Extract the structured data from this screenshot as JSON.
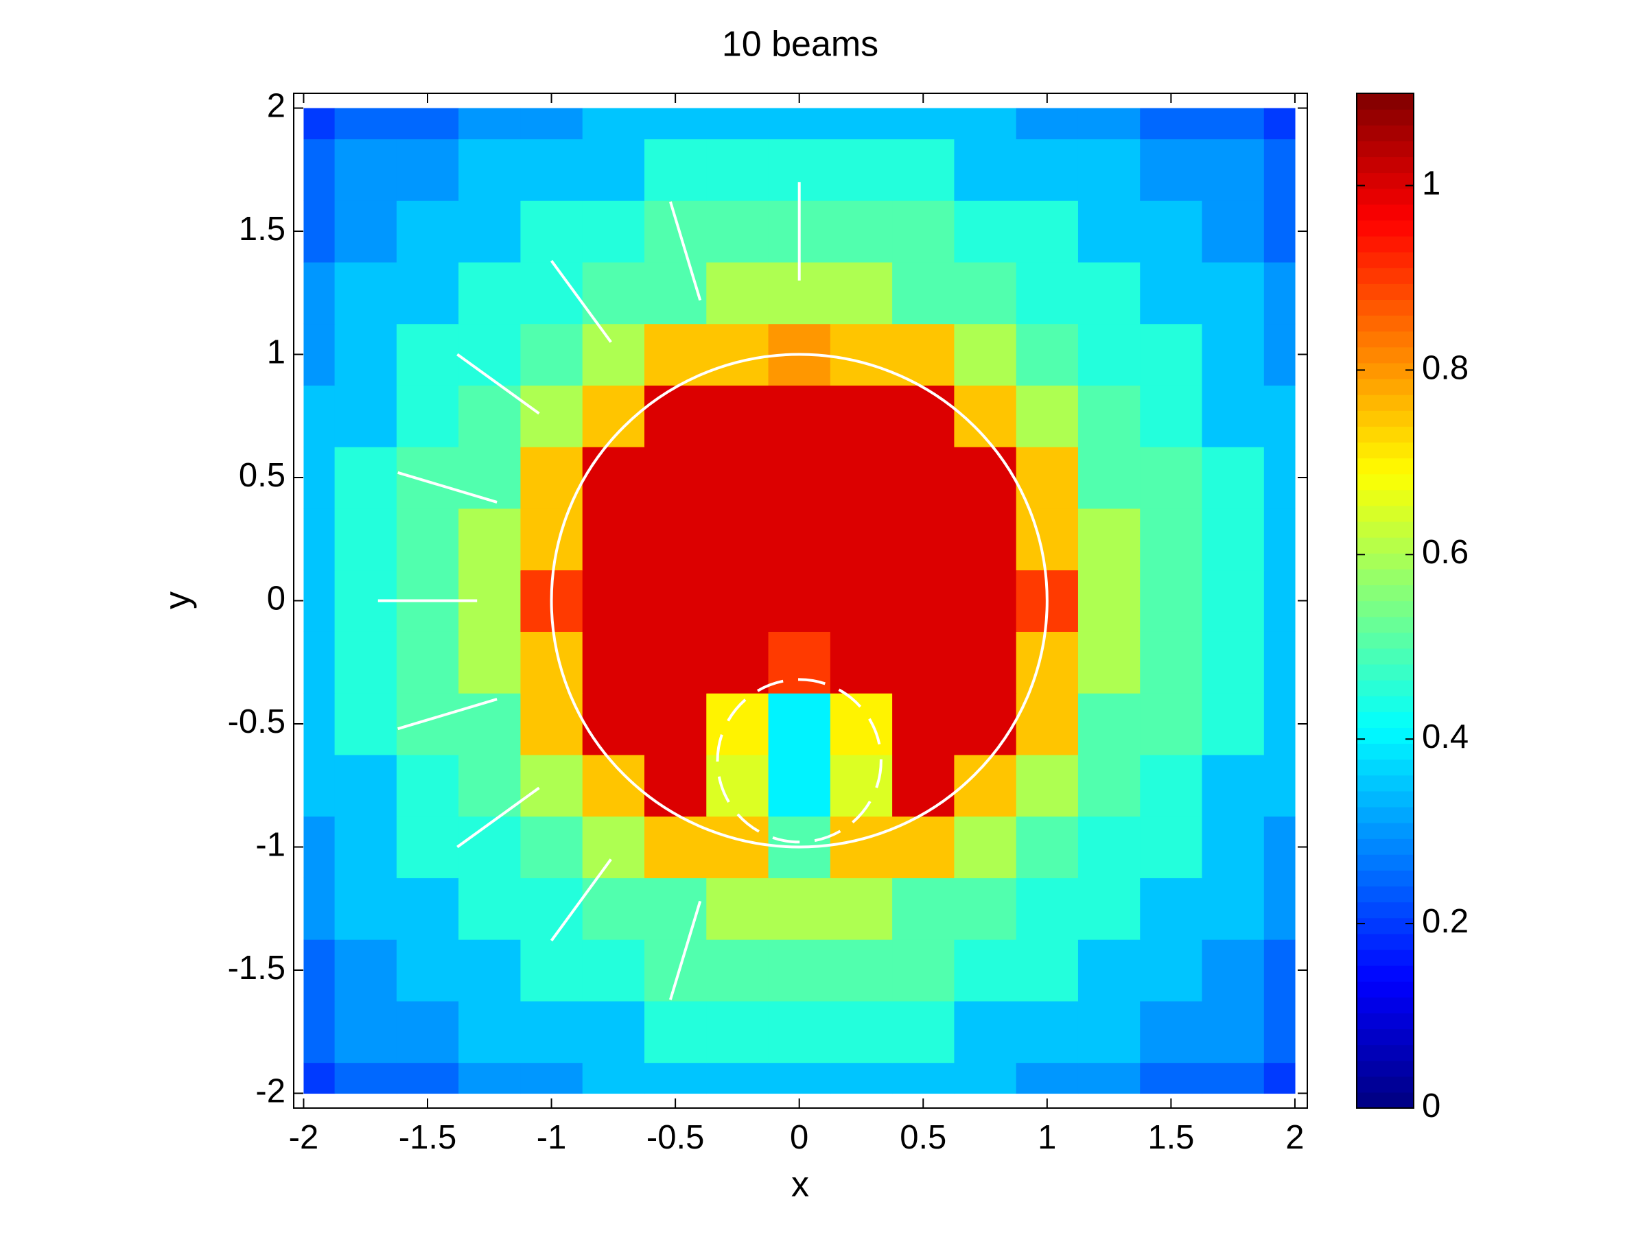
{
  "chart_data": {
    "type": "heatmap",
    "title": "10 beams",
    "x_label": "x",
    "y_label": "y",
    "colormap": "jet",
    "x": [
      -2,
      -1.75,
      -1.5,
      -1.25,
      -1,
      -0.75,
      -0.5,
      -0.25,
      0,
      0.25,
      0.5,
      0.75,
      1,
      1.25,
      1.5,
      1.75,
      2
    ],
    "y": [
      -2,
      -1.75,
      -1.5,
      -1.25,
      -1,
      -0.75,
      -0.5,
      -0.25,
      0,
      0.25,
      0.5,
      0.75,
      1,
      1.25,
      1.5,
      1.75,
      2
    ],
    "z": [
      [
        0.2,
        0.25,
        0.25,
        0.3,
        0.3,
        0.35,
        0.35,
        0.35,
        0.35,
        0.35,
        0.35,
        0.35,
        0.3,
        0.3,
        0.25,
        0.25,
        0.2
      ],
      [
        0.25,
        0.3,
        0.3,
        0.35,
        0.35,
        0.35,
        0.45,
        0.45,
        0.45,
        0.45,
        0.45,
        0.35,
        0.35,
        0.35,
        0.3,
        0.3,
        0.25
      ],
      [
        0.25,
        0.3,
        0.35,
        0.35,
        0.45,
        0.45,
        0.5,
        0.5,
        0.5,
        0.5,
        0.5,
        0.45,
        0.45,
        0.35,
        0.35,
        0.3,
        0.25
      ],
      [
        0.3,
        0.35,
        0.35,
        0.45,
        0.45,
        0.5,
        0.5,
        0.6,
        0.6,
        0.6,
        0.5,
        0.5,
        0.45,
        0.45,
        0.35,
        0.35,
        0.3
      ],
      [
        0.3,
        0.35,
        0.45,
        0.45,
        0.5,
        0.6,
        0.75,
        0.75,
        0.5,
        0.75,
        0.75,
        0.6,
        0.5,
        0.45,
        0.45,
        0.35,
        0.3
      ],
      [
        0.35,
        0.35,
        0.45,
        0.5,
        0.6,
        0.75,
        1,
        0.65,
        0.4,
        0.65,
        1,
        0.75,
        0.6,
        0.5,
        0.45,
        0.35,
        0.35
      ],
      [
        0.35,
        0.45,
        0.5,
        0.5,
        0.75,
        1,
        1,
        0.7,
        0.4,
        0.7,
        1,
        1,
        0.75,
        0.5,
        0.5,
        0.45,
        0.35
      ],
      [
        0.35,
        0.45,
        0.5,
        0.6,
        0.75,
        1,
        1,
        1,
        0.9,
        1,
        1,
        1,
        0.75,
        0.6,
        0.5,
        0.45,
        0.35
      ],
      [
        0.35,
        0.45,
        0.5,
        0.6,
        0.9,
        1,
        1,
        1,
        1,
        1,
        1,
        1,
        0.9,
        0.6,
        0.5,
        0.45,
        0.35
      ],
      [
        0.35,
        0.45,
        0.5,
        0.6,
        0.75,
        1,
        1,
        1,
        1,
        1,
        1,
        1,
        0.75,
        0.6,
        0.5,
        0.45,
        0.35
      ],
      [
        0.35,
        0.45,
        0.5,
        0.5,
        0.75,
        1,
        1,
        1,
        1,
        1,
        1,
        1,
        0.75,
        0.5,
        0.5,
        0.45,
        0.35
      ],
      [
        0.35,
        0.35,
        0.45,
        0.5,
        0.6,
        0.75,
        1,
        1,
        1,
        1,
        1,
        0.75,
        0.6,
        0.5,
        0.45,
        0.35,
        0.35
      ],
      [
        0.3,
        0.35,
        0.45,
        0.45,
        0.5,
        0.6,
        0.75,
        0.75,
        0.8,
        0.75,
        0.75,
        0.6,
        0.5,
        0.45,
        0.45,
        0.35,
        0.3
      ],
      [
        0.3,
        0.35,
        0.35,
        0.45,
        0.45,
        0.5,
        0.5,
        0.6,
        0.6,
        0.6,
        0.5,
        0.5,
        0.45,
        0.45,
        0.35,
        0.35,
        0.3
      ],
      [
        0.25,
        0.3,
        0.35,
        0.35,
        0.45,
        0.45,
        0.5,
        0.5,
        0.5,
        0.5,
        0.5,
        0.45,
        0.45,
        0.35,
        0.35,
        0.3,
        0.25
      ],
      [
        0.25,
        0.3,
        0.3,
        0.35,
        0.35,
        0.35,
        0.45,
        0.45,
        0.45,
        0.45,
        0.45,
        0.35,
        0.35,
        0.35,
        0.3,
        0.3,
        0.25
      ],
      [
        0.2,
        0.25,
        0.25,
        0.3,
        0.3,
        0.35,
        0.35,
        0.35,
        0.35,
        0.35,
        0.35,
        0.35,
        0.3,
        0.3,
        0.25,
        0.25,
        0.2
      ]
    ],
    "circles": [
      {
        "cx": 0,
        "cy": 0,
        "r": 1,
        "dashed": false
      },
      {
        "cx": 0,
        "cy": -0.65,
        "r": 0.33,
        "dashed": true
      }
    ],
    "segments": [
      {
        "x": [
          0,
          0
        ],
        "y": [
          1.7,
          1.3
        ]
      },
      {
        "x": [
          -0.52,
          -0.4
        ],
        "y": [
          1.62,
          1.22
        ]
      },
      {
        "x": [
          -1,
          -0.76
        ],
        "y": [
          1.38,
          1.05
        ]
      },
      {
        "x": [
          -1.38,
          -1.05
        ],
        "y": [
          1,
          0.76
        ]
      },
      {
        "x": [
          -1.62,
          -1.22
        ],
        "y": [
          0.52,
          0.4
        ]
      },
      {
        "x": [
          -1.7,
          -1.3
        ],
        "y": [
          0,
          0
        ]
      },
      {
        "x": [
          -1.62,
          -1.22
        ],
        "y": [
          -0.52,
          -0.4
        ]
      },
      {
        "x": [
          -1.38,
          -1.05
        ],
        "y": [
          -1,
          -0.76
        ]
      },
      {
        "x": [
          -1,
          -0.76
        ],
        "y": [
          -1.38,
          -1.05
        ]
      },
      {
        "x": [
          -0.52,
          -0.4
        ],
        "y": [
          -1.62,
          -1.22
        ]
      }
    ],
    "xlim": [
      -2.04,
      2.05
    ],
    "ylim": [
      -2.06,
      2.06
    ],
    "xticks": [
      -2,
      -1.5,
      -1,
      -0.5,
      0,
      0.5,
      1,
      1.5,
      2
    ],
    "yticks": [
      -2,
      -1.5,
      -1,
      -0.5,
      0,
      0.5,
      1,
      1.5,
      2
    ],
    "clim": [
      0,
      1.1
    ],
    "cticks": [
      0,
      0.2,
      0.4,
      0.6,
      0.8,
      1
    ]
  }
}
